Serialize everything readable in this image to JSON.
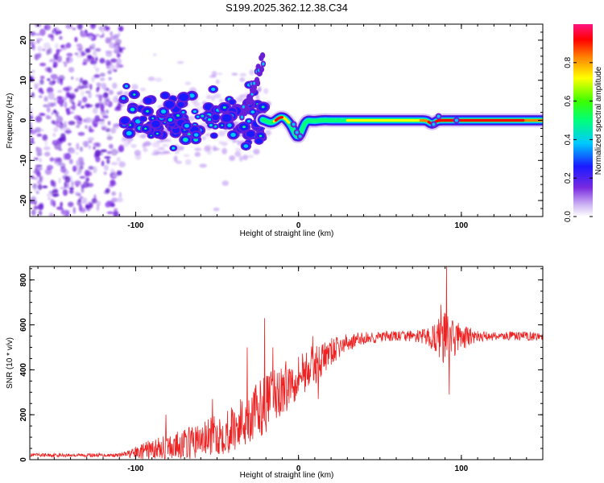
{
  "title": "S199.2025.362.12.38.C34",
  "colors": {
    "line": "#ee2222",
    "axis": "#000000",
    "cloud": "#6a1ed8"
  },
  "chart_data": [
    {
      "type": "heatmap",
      "xlabel": "Height of straight line (km)",
      "ylabel": "Frequency (Hz)",
      "xlim": [
        -165,
        150
      ],
      "ylim": [
        -24,
        24
      ],
      "xticks": [
        -100,
        0,
        100
      ],
      "yticks": [
        -20,
        -10,
        0,
        10,
        20
      ],
      "grid": false,
      "colorbar": {
        "label": "Normalized spectral amplitude",
        "range": [
          0,
          1
        ],
        "ticks": [
          "0.0",
          "0.2",
          "0.4",
          "0.6",
          "0.8"
        ],
        "tick_values": [
          0.0,
          0.2,
          0.4,
          0.6,
          0.8
        ],
        "colormap": "rainbow (violet → blue → cyan → green → yellow → red → magenta)"
      },
      "features": {
        "noise_region_km": [
          -165,
          -108
        ],
        "ridge_start_km": -108,
        "ridge_end_km": 150,
        "ridge_frequency_hz": 0,
        "upward_streak": {
          "from": [
            -35,
            0
          ],
          "to": [
            -22,
            15
          ]
        },
        "dip_near_km": 0,
        "dip_frequency_hz": -4
      }
    },
    {
      "type": "line",
      "xlabel": "Height of straight line (km)",
      "ylabel": "SNR (10 * v/v)",
      "xlim": [
        -165,
        150
      ],
      "ylim": [
        0,
        860
      ],
      "xticks": [
        -100,
        0,
        100
      ],
      "yticks": [
        0,
        200,
        400,
        600,
        800
      ],
      "grid": false,
      "series": [
        {
          "name": "SNR",
          "x": [
            -165,
            -140,
            -110,
            -100,
            -90,
            -80,
            -70,
            -60,
            -50,
            -40,
            -30,
            -20,
            -10,
            0,
            10,
            20,
            30,
            40,
            50,
            60,
            70,
            80,
            90,
            100,
            110,
            120,
            130,
            140,
            150
          ],
          "baseline": [
            20,
            20,
            20,
            30,
            45,
            55,
            70,
            85,
            110,
            140,
            190,
            250,
            310,
            380,
            420,
            480,
            520,
            540,
            545,
            550,
            550,
            545,
            540,
            545,
            548,
            550,
            550,
            550,
            550
          ],
          "amplitude": [
            8,
            8,
            8,
            25,
            50,
            55,
            70,
            80,
            90,
            110,
            120,
            130,
            120,
            100,
            90,
            60,
            40,
            30,
            25,
            25,
            25,
            40,
            120,
            60,
            25,
            20,
            20,
            20,
            20
          ],
          "spikes": [
            {
              "x": 90.9,
              "y": 860
            },
            {
              "x": 87.5,
              "y": 690
            },
            {
              "x": 92.5,
              "y": 290
            },
            {
              "x": -20.8,
              "y": 630
            },
            {
              "x": -15.8,
              "y": 500
            },
            {
              "x": -31.6,
              "y": 500
            },
            {
              "x": 8.8,
              "y": 550
            },
            {
              "x": 12.2,
              "y": 270
            },
            {
              "x": -81.5,
              "y": 200
            },
            {
              "x": -52.9,
              "y": 270
            }
          ]
        }
      ]
    }
  ]
}
